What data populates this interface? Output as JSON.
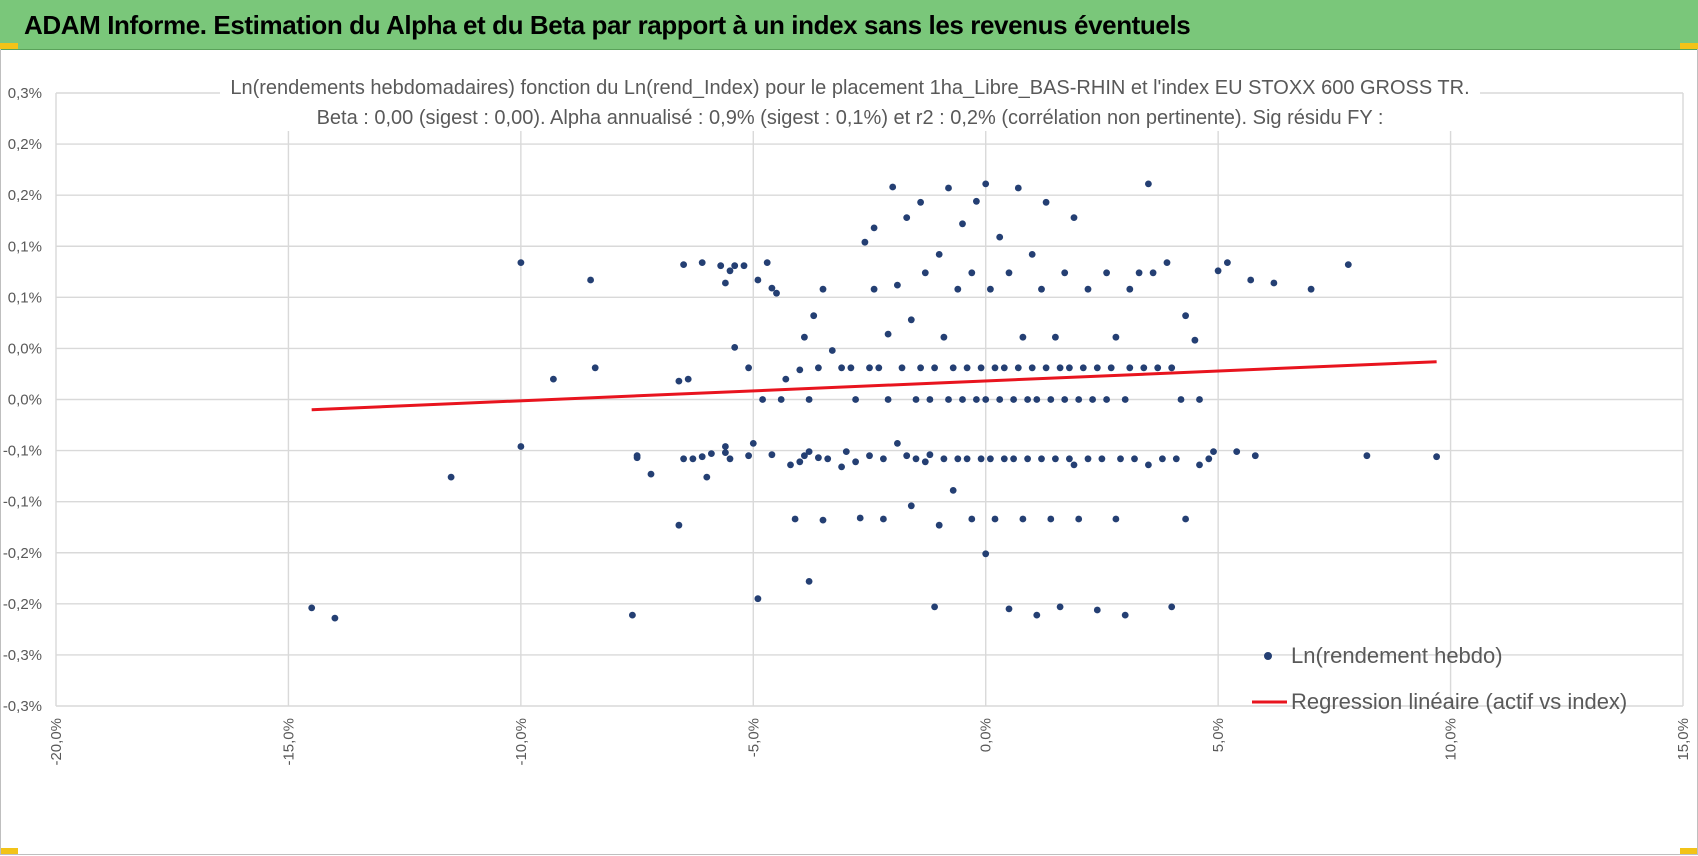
{
  "header": {
    "title": "ADAM Informe. Estimation du Alpha et du Beta par rapport à un index sans les revenus éventuels"
  },
  "colors": {
    "banner": "#7ac77a",
    "accent": "#f2c318",
    "points": "#243f73",
    "regression": "#e8141e",
    "grid": "#d9d9d9",
    "text": "#595959"
  },
  "chart_data": {
    "type": "scatter",
    "title": "Ln(rendements hebdomadaires) fonction du Ln(rend_Index) pour le placement 1ha_Libre_BAS-RHIN et l'index EU STOXX 600 GROSS TR.",
    "subtitle": "Beta : 0,00 (sigest : 0,00). Alpha annualisé : 0,9% (sigest : 0,1%) et r2 : 0,2% (corrélation non pertinente). Sig résidu FY :",
    "xlabel": "",
    "ylabel": "",
    "xlim": [
      -0.2,
      0.15
    ],
    "ylim": [
      -0.003,
      0.003
    ],
    "x_ticks": [
      -0.2,
      -0.15,
      -0.1,
      -0.05,
      0.0,
      0.05,
      0.1,
      0.15
    ],
    "x_tick_labels": [
      "-20,0%",
      "-15,0%",
      "-10,0%",
      "-5,0%",
      "0,0%",
      "5,0%",
      "10,0%",
      "15,0%"
    ],
    "y_ticks": [
      0.003,
      0.0025,
      0.002,
      0.0015,
      0.001,
      0.0005,
      0.0,
      -0.0005,
      -0.001,
      -0.0015,
      -0.002,
      -0.0025,
      -0.003
    ],
    "y_tick_labels": [
      "0,3%",
      "0,2%",
      "0,2%",
      "0,1%",
      "0,1%",
      "0,0%",
      "0,0%",
      "-0,1%",
      "-0,1%",
      "-0,2%",
      "-0,2%",
      "-0,3%",
      "-0,3%"
    ],
    "grid": true,
    "legend": {
      "position": "bottom-right",
      "entries": [
        "Ln(rendement hebdo)",
        "Regression linéaire (actif vs index)"
      ]
    },
    "series": [
      {
        "name": "Ln(rendement hebdo)",
        "kind": "scatter",
        "points": [
          [
            -0.145,
            -0.00204
          ],
          [
            -0.14,
            -0.00214
          ],
          [
            -0.115,
            -0.00076
          ],
          [
            -0.1,
            0.00134
          ],
          [
            -0.1,
            -0.00046
          ],
          [
            -0.093,
            0.0002
          ],
          [
            -0.085,
            0.00117
          ],
          [
            -0.084,
            0.00031
          ],
          [
            -0.076,
            -0.00211
          ],
          [
            -0.075,
            -0.00055
          ],
          [
            -0.075,
            -0.00057
          ],
          [
            -0.072,
            -0.00073
          ],
          [
            -0.066,
            -0.00123
          ],
          [
            -0.066,
            0.00018
          ],
          [
            -0.065,
            -0.00058
          ],
          [
            -0.065,
            0.00132
          ],
          [
            -0.064,
            0.0002
          ],
          [
            -0.063,
            -0.00058
          ],
          [
            -0.061,
            -0.00056
          ],
          [
            -0.061,
            0.00134
          ],
          [
            -0.06,
            -0.00076
          ],
          [
            -0.059,
            -0.00053
          ],
          [
            -0.057,
            0.00131
          ],
          [
            -0.056,
            -0.00052
          ],
          [
            -0.056,
            -0.00046
          ],
          [
            -0.056,
            0.00114
          ],
          [
            -0.055,
            0.00126
          ],
          [
            -0.055,
            -0.00058
          ],
          [
            -0.054,
            0.00131
          ],
          [
            -0.054,
            0.00051
          ],
          [
            -0.052,
            0.00131
          ],
          [
            -0.051,
            -0.00055
          ],
          [
            -0.051,
            0.00031
          ],
          [
            -0.05,
            -0.00043
          ],
          [
            -0.049,
            -0.00195
          ],
          [
            -0.049,
            0.00117
          ],
          [
            -0.048,
            0.0
          ],
          [
            -0.047,
            0.00134
          ],
          [
            -0.046,
            -0.00054
          ],
          [
            -0.046,
            0.00109
          ],
          [
            -0.045,
            0.00104
          ],
          [
            -0.044,
            0.0
          ],
          [
            -0.043,
            0.0002
          ],
          [
            -0.042,
            -0.00064
          ],
          [
            -0.041,
            -0.00117
          ],
          [
            -0.04,
            -0.00061
          ],
          [
            -0.04,
            0.00029
          ],
          [
            -0.039,
            -0.00055
          ],
          [
            -0.039,
            0.00061
          ],
          [
            -0.038,
            -0.00178
          ],
          [
            -0.038,
            -0.00051
          ],
          [
            -0.038,
            0.0
          ],
          [
            -0.037,
            0.00082
          ],
          [
            -0.036,
            -0.00057
          ],
          [
            -0.036,
            0.00031
          ],
          [
            -0.035,
            -0.00118
          ],
          [
            -0.035,
            0.00108
          ],
          [
            -0.034,
            -0.00058
          ],
          [
            -0.033,
            0.00048
          ],
          [
            -0.031,
            0.00031
          ],
          [
            -0.031,
            -0.00066
          ],
          [
            -0.03,
            -0.00051
          ],
          [
            -0.029,
            0.00031
          ],
          [
            -0.028,
            -0.00061
          ],
          [
            -0.028,
            0.0
          ],
          [
            -0.027,
            -0.00116
          ],
          [
            -0.026,
            0.00154
          ],
          [
            -0.025,
            -0.00055
          ],
          [
            -0.025,
            0.00031
          ],
          [
            -0.024,
            0.00108
          ],
          [
            -0.024,
            0.00168
          ],
          [
            -0.023,
            0.00031
          ],
          [
            -0.022,
            -0.00117
          ],
          [
            -0.022,
            -0.00058
          ],
          [
            -0.021,
            0.0
          ],
          [
            -0.021,
            0.00064
          ],
          [
            -0.02,
            0.00208
          ],
          [
            -0.019,
            -0.00043
          ],
          [
            -0.019,
            0.00112
          ],
          [
            -0.018,
            0.00031
          ],
          [
            -0.017,
            -0.00055
          ],
          [
            -0.017,
            0.00178
          ],
          [
            -0.016,
            -0.00104
          ],
          [
            -0.016,
            0.00078
          ],
          [
            -0.015,
            0.0
          ],
          [
            -0.015,
            -0.00058
          ],
          [
            -0.014,
            0.00031
          ],
          [
            -0.014,
            0.00193
          ],
          [
            -0.013,
            -0.00061
          ],
          [
            -0.013,
            0.00124
          ],
          [
            -0.012,
            -0.00054
          ],
          [
            -0.012,
            0.0
          ],
          [
            -0.011,
            -0.00203
          ],
          [
            -0.011,
            0.00031
          ],
          [
            -0.01,
            -0.00123
          ],
          [
            -0.01,
            0.00142
          ],
          [
            -0.009,
            -0.00058
          ],
          [
            -0.009,
            0.00061
          ],
          [
            -0.008,
            0.0
          ],
          [
            -0.008,
            0.00207
          ],
          [
            -0.007,
            -0.00089
          ],
          [
            -0.007,
            0.00031
          ],
          [
            -0.006,
            -0.00058
          ],
          [
            -0.006,
            0.00108
          ],
          [
            -0.005,
            0.0
          ],
          [
            -0.005,
            0.00172
          ],
          [
            -0.004,
            -0.00058
          ],
          [
            -0.004,
            0.00031
          ],
          [
            -0.003,
            -0.00117
          ],
          [
            -0.003,
            0.00124
          ],
          [
            -0.002,
            0.0
          ],
          [
            -0.002,
            0.00194
          ],
          [
            -0.001,
            -0.00058
          ],
          [
            -0.001,
            0.00031
          ],
          [
            0.0,
            -0.00151
          ],
          [
            0.0,
            0.0
          ],
          [
            0.0,
            0.00211
          ],
          [
            0.001,
            -0.00058
          ],
          [
            0.001,
            0.00108
          ],
          [
            0.002,
            0.00031
          ],
          [
            0.002,
            -0.00117
          ],
          [
            0.003,
            0.0
          ],
          [
            0.003,
            0.00159
          ],
          [
            0.004,
            -0.00058
          ],
          [
            0.004,
            0.00031
          ],
          [
            0.005,
            -0.00205
          ],
          [
            0.005,
            0.00124
          ],
          [
            0.006,
            0.0
          ],
          [
            0.006,
            -0.00058
          ],
          [
            0.007,
            0.00031
          ],
          [
            0.007,
            0.00207
          ],
          [
            0.008,
            -0.00117
          ],
          [
            0.008,
            0.00061
          ],
          [
            0.009,
            0.0
          ],
          [
            0.009,
            -0.00058
          ],
          [
            0.01,
            0.00031
          ],
          [
            0.01,
            0.00142
          ],
          [
            0.011,
            -0.00211
          ],
          [
            0.011,
            0.0
          ],
          [
            0.012,
            -0.00058
          ],
          [
            0.012,
            0.00108
          ],
          [
            0.013,
            0.00031
          ],
          [
            0.013,
            0.00193
          ],
          [
            0.014,
            -0.00117
          ],
          [
            0.014,
            0.0
          ],
          [
            0.015,
            -0.00058
          ],
          [
            0.015,
            0.00061
          ],
          [
            0.016,
            0.00031
          ],
          [
            0.016,
            -0.00203
          ],
          [
            0.017,
            0.0
          ],
          [
            0.017,
            0.00124
          ],
          [
            0.018,
            -0.00058
          ],
          [
            0.018,
            0.00031
          ],
          [
            0.019,
            -0.00064
          ],
          [
            0.019,
            0.00178
          ],
          [
            0.02,
            0.0
          ],
          [
            0.02,
            -0.00117
          ],
          [
            0.021,
            0.00031
          ],
          [
            0.022,
            -0.00058
          ],
          [
            0.022,
            0.00108
          ],
          [
            0.023,
            0.0
          ],
          [
            0.024,
            0.00031
          ],
          [
            0.024,
            -0.00206
          ],
          [
            0.025,
            -0.00058
          ],
          [
            0.026,
            0.00124
          ],
          [
            0.026,
            0.0
          ],
          [
            0.027,
            0.00031
          ],
          [
            0.028,
            -0.00117
          ],
          [
            0.028,
            0.00061
          ],
          [
            0.029,
            -0.00058
          ],
          [
            0.03,
            0.0
          ],
          [
            0.03,
            -0.00211
          ],
          [
            0.031,
            0.00031
          ],
          [
            0.031,
            0.00108
          ],
          [
            0.032,
            -0.00058
          ],
          [
            0.033,
            0.00124
          ],
          [
            0.034,
            0.00031
          ],
          [
            0.035,
            -0.00064
          ],
          [
            0.035,
            0.00211
          ],
          [
            0.036,
            0.00124
          ],
          [
            0.037,
            0.00031
          ],
          [
            0.038,
            -0.00058
          ],
          [
            0.039,
            0.00134
          ],
          [
            0.04,
            0.00031
          ],
          [
            0.04,
            -0.00203
          ],
          [
            0.041,
            -0.00058
          ],
          [
            0.042,
            0.0
          ],
          [
            0.043,
            -0.00117
          ],
          [
            0.043,
            0.00082
          ],
          [
            0.045,
            0.00058
          ],
          [
            0.046,
            0.0
          ],
          [
            0.046,
            -0.00064
          ],
          [
            0.048,
            -0.00058
          ],
          [
            0.049,
            -0.00051
          ],
          [
            0.05,
            0.00126
          ],
          [
            0.052,
            0.00134
          ],
          [
            0.054,
            -0.00051
          ],
          [
            0.057,
            0.00117
          ],
          [
            0.058,
            -0.00055
          ],
          [
            0.062,
            0.00114
          ],
          [
            0.07,
            0.00108
          ],
          [
            0.078,
            0.00132
          ],
          [
            0.082,
            -0.00055
          ],
          [
            0.097,
            -0.00056
          ]
        ]
      },
      {
        "name": "Regression linéaire (actif vs index)",
        "kind": "line",
        "x": [
          -0.145,
          0.097
        ],
        "y": [
          -0.0001,
          0.00037
        ]
      }
    ]
  }
}
